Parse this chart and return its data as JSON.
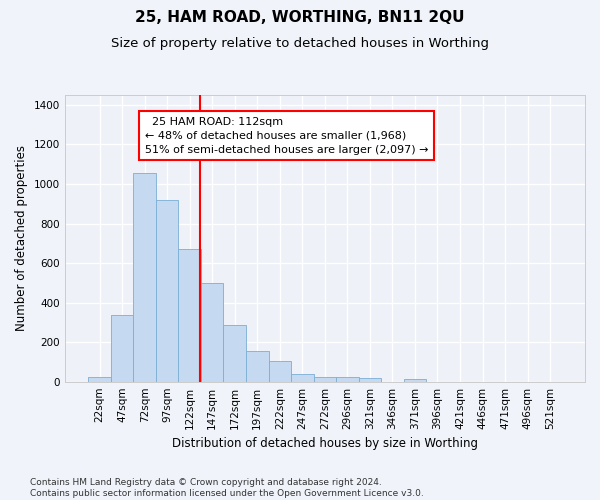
{
  "title": "25, HAM ROAD, WORTHING, BN11 2QU",
  "subtitle": "Size of property relative to detached houses in Worthing",
  "xlabel": "Distribution of detached houses by size in Worthing",
  "ylabel": "Number of detached properties",
  "categories": [
    "22sqm",
    "47sqm",
    "72sqm",
    "97sqm",
    "122sqm",
    "147sqm",
    "172sqm",
    "197sqm",
    "222sqm",
    "247sqm",
    "272sqm",
    "296sqm",
    "321sqm",
    "346sqm",
    "371sqm",
    "396sqm",
    "421sqm",
    "446sqm",
    "471sqm",
    "496sqm",
    "521sqm"
  ],
  "bar_values": [
    22,
    335,
    1055,
    920,
    670,
    500,
    285,
    155,
    103,
    37,
    25,
    22,
    17,
    0,
    12,
    0,
    0,
    0,
    0,
    0,
    0
  ],
  "bar_color": "#c5d9f0",
  "bar_edge_color": "#7bafd4",
  "bar_width": 1.0,
  "vline_x": 4.45,
  "vline_color": "red",
  "annotation_text": "  25 HAM ROAD: 112sqm\n← 48% of detached houses are smaller (1,968)\n51% of semi-detached houses are larger (2,097) →",
  "annotation_box_color": "white",
  "annotation_box_edge": "red",
  "ylim": [
    0,
    1450
  ],
  "yticks": [
    0,
    200,
    400,
    600,
    800,
    1000,
    1200,
    1400
  ],
  "footnote": "Contains HM Land Registry data © Crown copyright and database right 2024.\nContains public sector information licensed under the Open Government Licence v3.0.",
  "bg_color": "#f0f4fa",
  "plot_bg_color": "#eef2f8",
  "title_fontsize": 11,
  "subtitle_fontsize": 9.5,
  "label_fontsize": 8.5,
  "tick_fontsize": 7.5,
  "footnote_fontsize": 6.5,
  "annotation_fontsize": 8
}
